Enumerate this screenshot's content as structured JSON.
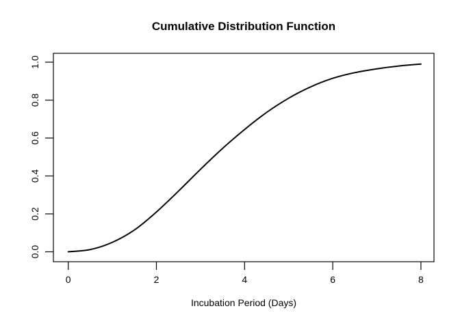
{
  "figure": {
    "background": "#ffffff",
    "text_color": "#000000",
    "axis_color": "#000000"
  },
  "chart_data": {
    "type": "line",
    "title": "Cumulative Distribution Function",
    "xlabel": "Incubation Period (Days)",
    "ylabel": "",
    "x": [
      0,
      0.5,
      1,
      1.5,
      2,
      2.5,
      3,
      3.5,
      4,
      4.5,
      5,
      5.5,
      6,
      6.5,
      7,
      7.5,
      8
    ],
    "y": [
      0.0,
      0.012,
      0.05,
      0.115,
      0.21,
      0.32,
      0.435,
      0.545,
      0.645,
      0.735,
      0.81,
      0.87,
      0.915,
      0.945,
      0.965,
      0.98,
      0.99
    ],
    "xlim": [
      0,
      8
    ],
    "ylim": [
      0,
      1
    ],
    "x_tick_values": [
      0,
      2,
      4,
      6,
      8
    ],
    "x_tick_labels": [
      "0",
      "2",
      "4",
      "6",
      "8"
    ],
    "y_tick_values": [
      0.0,
      0.2,
      0.4,
      0.6,
      0.8,
      1.0
    ],
    "y_tick_labels": [
      "0.0",
      "0.2",
      "0.4",
      "0.6",
      "0.8",
      "1.0"
    ],
    "line_color": "#000000",
    "line_width": 2,
    "grid": false,
    "legend": null
  }
}
